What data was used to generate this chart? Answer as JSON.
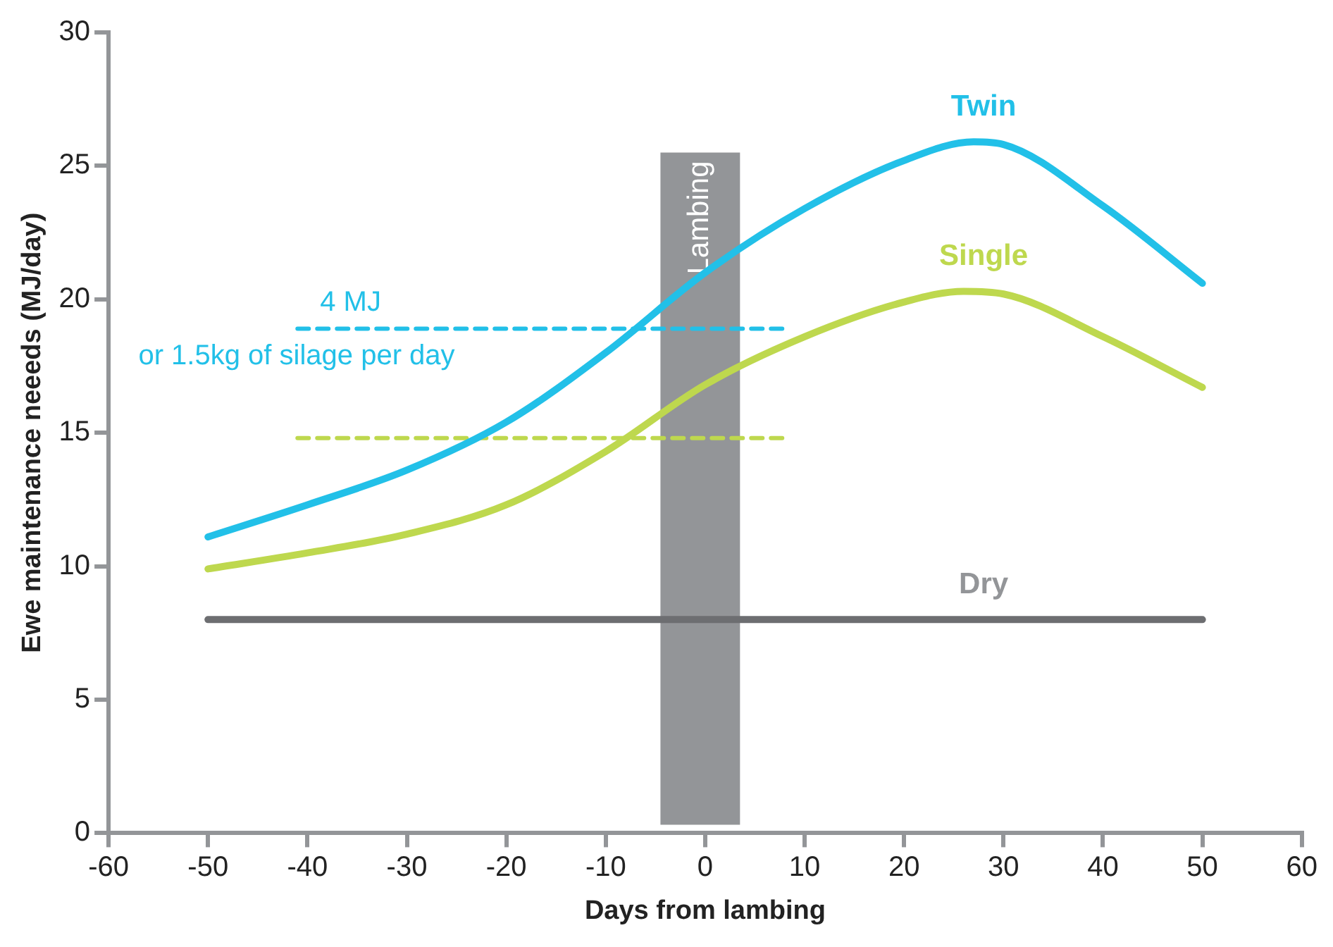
{
  "chart_data": {
    "type": "line",
    "xlabel": "Days from lambing",
    "ylabel": "Ewe maintenance neeeds (MJ/day)",
    "xlim": [
      -60,
      60
    ],
    "xticks": [
      -60,
      -50,
      -40,
      -30,
      -20,
      -10,
      0,
      10,
      20,
      30,
      40,
      50,
      60
    ],
    "ylim": [
      0,
      30
    ],
    "yticks": [
      0,
      5,
      10,
      15,
      20,
      25,
      30
    ],
    "grid": false,
    "legend": false,
    "marker": "none",
    "series": [
      {
        "name": "Twin",
        "color": "#22c0e8",
        "x": [
          -50,
          -40,
          -30,
          -20,
          -10,
          0,
          10,
          20,
          27,
          30,
          40,
          50
        ],
        "values": [
          11.1,
          12.3,
          13.6,
          15.4,
          18.0,
          21.0,
          23.4,
          25.2,
          25.9,
          25.8,
          23.5,
          20.6
        ]
      },
      {
        "name": "Single",
        "color": "#bed84e",
        "x": [
          -50,
          -40,
          -30,
          -20,
          -10,
          0,
          10,
          20,
          26,
          30,
          40,
          50
        ],
        "values": [
          9.9,
          10.5,
          11.2,
          12.3,
          14.3,
          16.8,
          18.6,
          19.9,
          20.3,
          20.2,
          18.6,
          16.7
        ]
      },
      {
        "name": "Dry",
        "color": "#6d6e71",
        "x": [
          -50,
          50
        ],
        "values": [
          8,
          8
        ]
      },
      {
        "color": "#22c0e8",
        "line_style": "dashed",
        "x": [
          -41,
          8
        ],
        "values": [
          18.9,
          18.9
        ]
      },
      {
        "color": "#bed84e",
        "line_style": "dashed",
        "x": [
          -41,
          8
        ],
        "values": [
          14.8,
          14.8
        ]
      }
    ],
    "bands": [
      {
        "axis": "x",
        "from": -4.5,
        "to": 3.5,
        "label": "Lambing",
        "color": "#939598"
      }
    ],
    "annotations": [
      "4 MJ",
      "or 1.5kg of silage per day"
    ]
  }
}
